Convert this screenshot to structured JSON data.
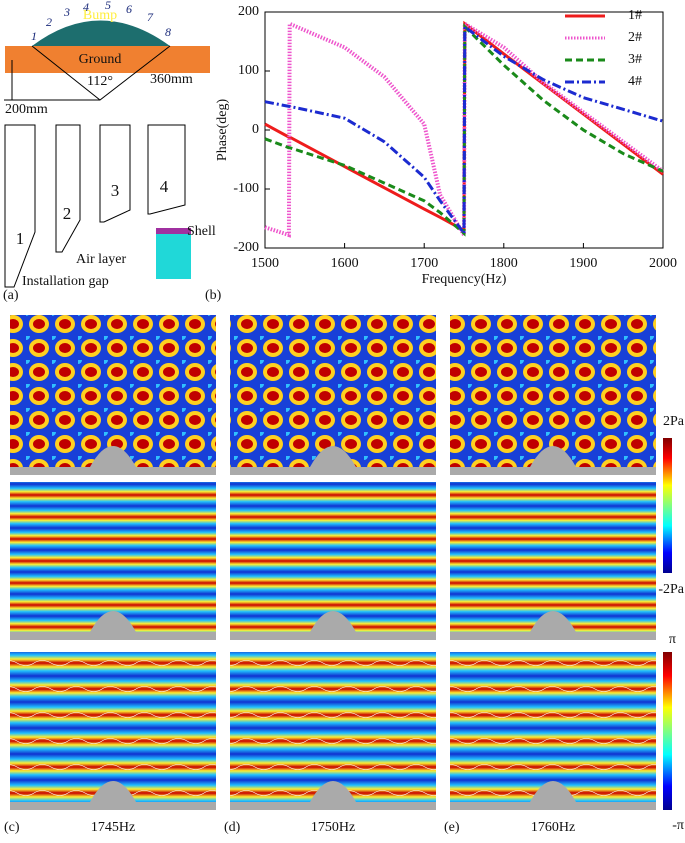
{
  "panel_a": {
    "label": "(a)",
    "bump": "Bump",
    "ground": "Ground",
    "angle": "112°",
    "radius": "360mm",
    "width": "200mm",
    "positions": [
      "1",
      "2",
      "3",
      "4",
      "5",
      "6",
      "7",
      "8"
    ],
    "pieces": [
      "1",
      "2",
      "3",
      "4"
    ],
    "shell": "Shell",
    "air_layer": "Air layer",
    "installation_gap": "Installation gap"
  },
  "chart_data": {
    "type": "line",
    "panel_label": "(b)",
    "x_label": "Frequency(Hz)",
    "y_label": "Phase(deg)",
    "x": [
      1500,
      1530,
      1531,
      1600,
      1650,
      1700,
      1720,
      1750,
      1751,
      1800,
      1850,
      1900,
      1950,
      2000
    ],
    "series": [
      {
        "name": "1#",
        "color": "#ee1c1c",
        "line_style": "solid",
        "values": [
          10,
          -12,
          -12,
          -62,
          -98,
          -134,
          -148,
          -170,
          180,
          129,
          78,
          27,
          -24,
          -75
        ]
      },
      {
        "name": "2#",
        "color": "#ee55cc",
        "line_style": "dotted",
        "values": [
          -165,
          -178,
          180,
          140,
          90,
          10,
          -110,
          -178,
          180,
          140,
          80,
          30,
          -20,
          -70
        ]
      },
      {
        "name": "3#",
        "color": "#1a8a1a",
        "line_style": "dashed",
        "values": [
          -15,
          -30,
          -30,
          -60,
          -90,
          -120,
          -140,
          -175,
          175,
          110,
          50,
          0,
          -40,
          -70
        ]
      },
      {
        "name": "4#",
        "color": "#1c2bd0",
        "line_style": "dashdot",
        "values": [
          48,
          40,
          40,
          20,
          -20,
          -80,
          -120,
          -175,
          175,
          125,
          85,
          55,
          35,
          15
        ]
      }
    ],
    "xlim": [
      1500,
      2000
    ],
    "ylim": [
      -200,
      200
    ],
    "xticks": [
      1500,
      1600,
      1700,
      1800,
      1900,
      2000
    ],
    "yticks": [
      -200,
      -100,
      0,
      100,
      200
    ],
    "legend": "upper right"
  },
  "field_panels": {
    "labels": [
      "(c)",
      "(d)",
      "(e)"
    ],
    "frequencies": [
      "1745Hz",
      "1750Hz",
      "1760Hz"
    ],
    "pressure_scale": [
      "2Pa",
      "-2Pa"
    ],
    "phase_scale": [
      "π",
      "-π"
    ]
  }
}
